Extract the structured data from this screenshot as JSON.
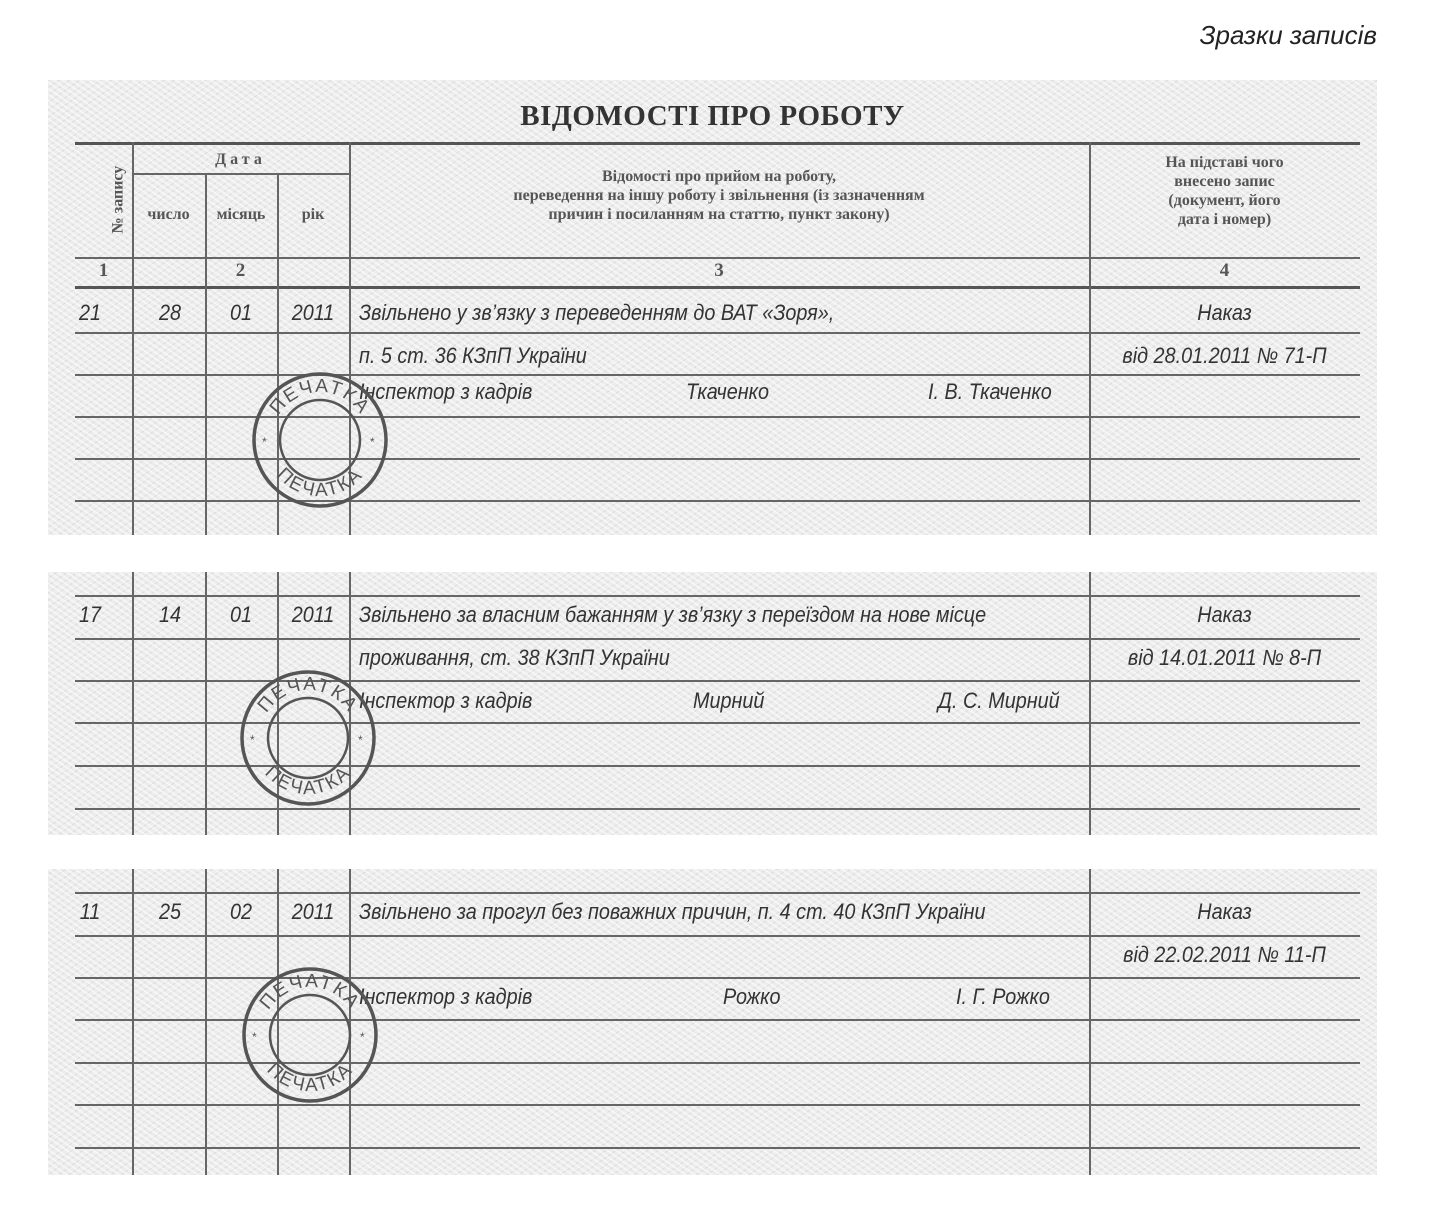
{
  "caption": "Зразки записів",
  "title": "ВІДОМОСТІ ПРО РОБОТУ",
  "columns": {
    "number": "№ запису",
    "date": "Дата",
    "day": "число",
    "month": "місяць",
    "year": "рік",
    "details_lines": [
      "Відомості про прийом на роботу,",
      "переведення на іншу роботу і звільнення (із зазначенням",
      "причин і посиланням на статтю, пункт закону)"
    ],
    "basis_lines": [
      "На підставі чого",
      "внесено запис",
      "(документ, його",
      "дата і номер)"
    ],
    "numbers": [
      "1",
      "2",
      "3",
      "4"
    ]
  },
  "stamp_text": "ПЕЧАТКА",
  "entries": [
    {
      "number": "21",
      "day": "28",
      "month": "01",
      "year": "2011",
      "text_lines": [
        "Звільнено у зв’язку з переведенням до ВАТ «Зоря»,",
        "п. 5 ст. 36 КЗпП України"
      ],
      "position": "Інспектор з кадрів",
      "signature": "Ткаченко",
      "name": "І. В. Ткаченко",
      "basis": [
        "Наказ",
        "від 28.01.2011 № 71-П"
      ]
    },
    {
      "number": "17",
      "day": "14",
      "month": "01",
      "year": "2011",
      "text_lines": [
        "Звільнено за власним бажанням у зв’язку з переїздом на нове місце",
        "проживання, ст. 38 КЗпП України"
      ],
      "position": "Інспектор з кадрів",
      "signature": "Мирний",
      "name": "Д. С. Мирний",
      "basis": [
        "Наказ",
        "від 14.01.2011 № 8-П"
      ]
    },
    {
      "number": "11",
      "day": "25",
      "month": "02",
      "year": "2011",
      "text_lines": [
        "Звільнено за прогул без поважних причин, п. 4 ст. 40 КЗпП України"
      ],
      "position": "Інспектор з кадрів",
      "signature": "Рожко",
      "name": "І. Г. Рожко",
      "basis": [
        "Наказ",
        "від 22.02.2011 № 11-П"
      ]
    }
  ]
}
